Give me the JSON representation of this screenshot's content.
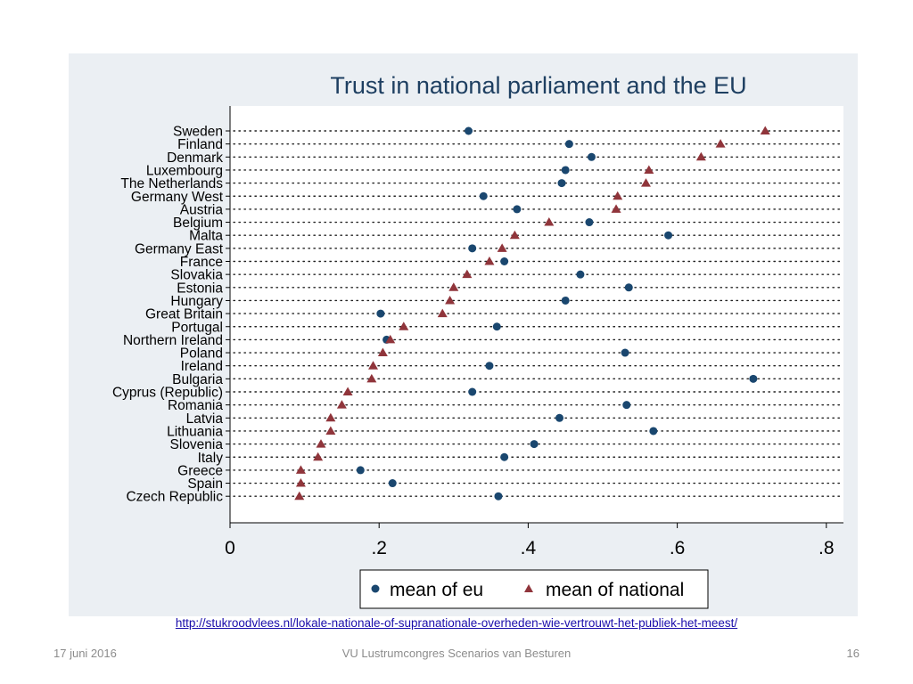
{
  "slide": {
    "source_url": "http://stukroodvlees.nl/lokale-nationale-of-supranationale-overheden-wie-vertrouwt-het-publiek-het-meest/",
    "footer_date": "17 juni 2016",
    "footer_title": "VU Lustrumcongres Scenarios van Besturen",
    "page_number": "16"
  },
  "chart_data": {
    "type": "scatter",
    "title": "Trust in national parliament and the EU",
    "categories": [
      "Sweden",
      "Finland",
      "Denmark",
      "Luxembourg",
      "The Netherlands",
      "Germany West",
      "Austria",
      "Belgium",
      "Malta",
      "Germany East",
      "France",
      "Slovakia",
      "Estonia",
      "Hungary",
      "Great Britain",
      "Portugal",
      "Northern Ireland",
      "Poland",
      "Ireland",
      "Bulgaria",
      "Cyprus (Republic)",
      "Romania",
      "Latvia",
      "Lithuania",
      "Slovenia",
      "Italy",
      "Greece",
      "Spain",
      "Czech Republic"
    ],
    "series": [
      {
        "name": "mean of eu",
        "marker": "circle",
        "color": "#1a476f",
        "values": [
          0.32,
          0.455,
          0.485,
          0.45,
          0.445,
          0.34,
          0.385,
          0.482,
          0.588,
          0.325,
          0.368,
          0.47,
          0.535,
          0.45,
          0.202,
          0.358,
          0.21,
          0.53,
          0.348,
          0.702,
          0.325,
          0.532,
          0.442,
          0.568,
          0.408,
          0.368,
          0.175,
          0.218,
          0.36
        ]
      },
      {
        "name": "mean of national",
        "marker": "triangle",
        "color": "#90353b",
        "values": [
          0.718,
          0.658,
          0.632,
          0.562,
          0.558,
          0.52,
          0.518,
          0.428,
          0.382,
          0.365,
          0.348,
          0.318,
          0.3,
          0.295,
          0.285,
          0.233,
          0.215,
          0.205,
          0.192,
          0.19,
          0.158,
          0.15,
          0.135,
          0.135,
          0.122,
          0.118,
          0.095,
          0.095,
          0.093
        ]
      }
    ],
    "xlim": [
      0,
      0.82
    ],
    "xticks": [
      0,
      0.2,
      0.4,
      0.6,
      0.8
    ],
    "xtick_labels": [
      "0",
      ".2",
      ".4",
      ".6",
      ".8"
    ],
    "legend_position": "bottom",
    "grid": "dotted row lines"
  }
}
